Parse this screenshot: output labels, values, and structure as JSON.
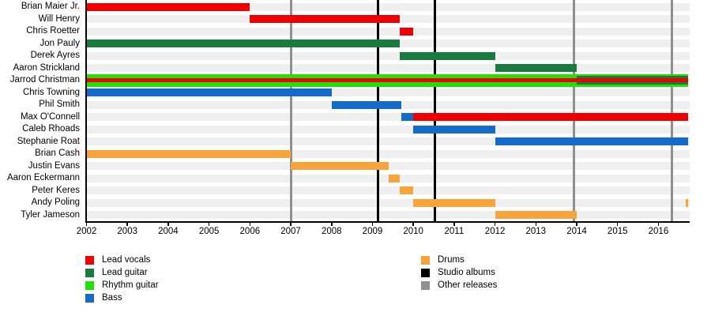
{
  "chart_data": {
    "type": "timeline",
    "description": "Band member tenure timeline (gantt-style) with release markers",
    "x_axis": {
      "start_year": 2002,
      "end_year": 2016.76,
      "tick_years": [
        2002,
        2003,
        2004,
        2005,
        2006,
        2007,
        2008,
        2009,
        2010,
        2011,
        2012,
        2013,
        2014,
        2015,
        2016
      ]
    },
    "colors": {
      "lead_vocals": "#f00000",
      "lead_guitar": "#1a7b41",
      "rhythm_guitar": "#22e000",
      "bass": "#146cc8",
      "drums": "#f8a43c",
      "studio_album": "#000000",
      "other_release": "#8f8f8f",
      "row_band": "#efefef"
    },
    "members": [
      {
        "name": "Brian Maier Jr.",
        "bars": [
          {
            "start": 2002,
            "end": 2006,
            "roles": [
              "lead_vocals"
            ]
          }
        ]
      },
      {
        "name": "Will Henry",
        "bars": [
          {
            "start": 2006,
            "end": 2009.67,
            "roles": [
              "lead_vocals"
            ]
          }
        ]
      },
      {
        "name": "Chris Roetter",
        "bars": [
          {
            "start": 2009.67,
            "end": 2010,
            "roles": [
              "lead_vocals"
            ]
          }
        ]
      },
      {
        "name": "Jon Pauly",
        "bars": [
          {
            "start": 2002,
            "end": 2009.67,
            "roles": [
              "lead_guitar"
            ]
          }
        ]
      },
      {
        "name": "Derek Ayres",
        "bars": [
          {
            "start": 2009.67,
            "end": 2012,
            "roles": [
              "lead_guitar"
            ]
          }
        ]
      },
      {
        "name": "Aaron Strickland",
        "bars": [
          {
            "start": 2012,
            "end": 2014,
            "roles": [
              "lead_guitar"
            ]
          }
        ]
      },
      {
        "name": "Jarrod Christman",
        "bars": [
          {
            "start": 2002,
            "end": 2014,
            "roles": [
              "rhythm_guitar",
              "lead_vocals"
            ]
          },
          {
            "start": 2014,
            "end": 2016.72,
            "roles": [
              "rhythm_guitar",
              "lead_guitar",
              "lead_vocals"
            ]
          }
        ]
      },
      {
        "name": "Chris Towning",
        "bars": [
          {
            "start": 2002,
            "end": 2008,
            "roles": [
              "bass"
            ]
          }
        ]
      },
      {
        "name": "Phil Smith",
        "bars": [
          {
            "start": 2008,
            "end": 2009.7,
            "roles": [
              "bass"
            ]
          }
        ]
      },
      {
        "name": "Max O'Connell",
        "bars": [
          {
            "start": 2009.7,
            "end": 2010,
            "roles": [
              "bass"
            ]
          },
          {
            "start": 2010,
            "end": 2016.72,
            "roles": [
              "lead_vocals"
            ]
          }
        ]
      },
      {
        "name": "Caleb Rhoads",
        "bars": [
          {
            "start": 2010,
            "end": 2012,
            "roles": [
              "bass"
            ]
          }
        ]
      },
      {
        "name": "Stephanie Roat",
        "bars": [
          {
            "start": 2012,
            "end": 2016.72,
            "roles": [
              "bass"
            ]
          }
        ]
      },
      {
        "name": "Brian Cash",
        "bars": [
          {
            "start": 2002,
            "end": 2007,
            "roles": [
              "drums"
            ]
          }
        ]
      },
      {
        "name": "Justin Evans",
        "bars": [
          {
            "start": 2007,
            "end": 2009.4,
            "roles": [
              "drums"
            ]
          }
        ]
      },
      {
        "name": "Aaron Eckermann",
        "bars": [
          {
            "start": 2009.4,
            "end": 2009.67,
            "roles": [
              "drums"
            ]
          }
        ]
      },
      {
        "name": "Peter Keres",
        "bars": [
          {
            "start": 2009.67,
            "end": 2010,
            "roles": [
              "drums"
            ]
          }
        ]
      },
      {
        "name": "Andy Poling",
        "bars": [
          {
            "start": 2010,
            "end": 2012,
            "roles": [
              "drums"
            ]
          },
          {
            "start": 2016.66,
            "end": 2016.72,
            "roles": [
              "drums"
            ]
          }
        ]
      },
      {
        "name": "Tyler Jameson",
        "bars": [
          {
            "start": 2012,
            "end": 2014,
            "roles": [
              "drums"
            ]
          }
        ]
      }
    ],
    "releases": [
      {
        "year": 2007.0,
        "type": "other_release"
      },
      {
        "year": 2009.13,
        "type": "studio_album"
      },
      {
        "year": 2010.52,
        "type": "studio_album"
      },
      {
        "year": 2013.93,
        "type": "other_release"
      },
      {
        "year": 2016.33,
        "type": "other_release"
      }
    ],
    "legend_left": [
      {
        "label": "Lead vocals",
        "role": "lead_vocals"
      },
      {
        "label": "Lead guitar",
        "role": "lead_guitar"
      },
      {
        "label": "Rhythm guitar",
        "role": "rhythm_guitar"
      },
      {
        "label": "Bass",
        "role": "bass"
      }
    ],
    "legend_right": [
      {
        "label": "Drums",
        "role": "drums"
      },
      {
        "label": "Studio albums",
        "role": "studio_album"
      },
      {
        "label": "Other releases",
        "role": "other_release"
      }
    ],
    "legend_position": "bottom"
  }
}
